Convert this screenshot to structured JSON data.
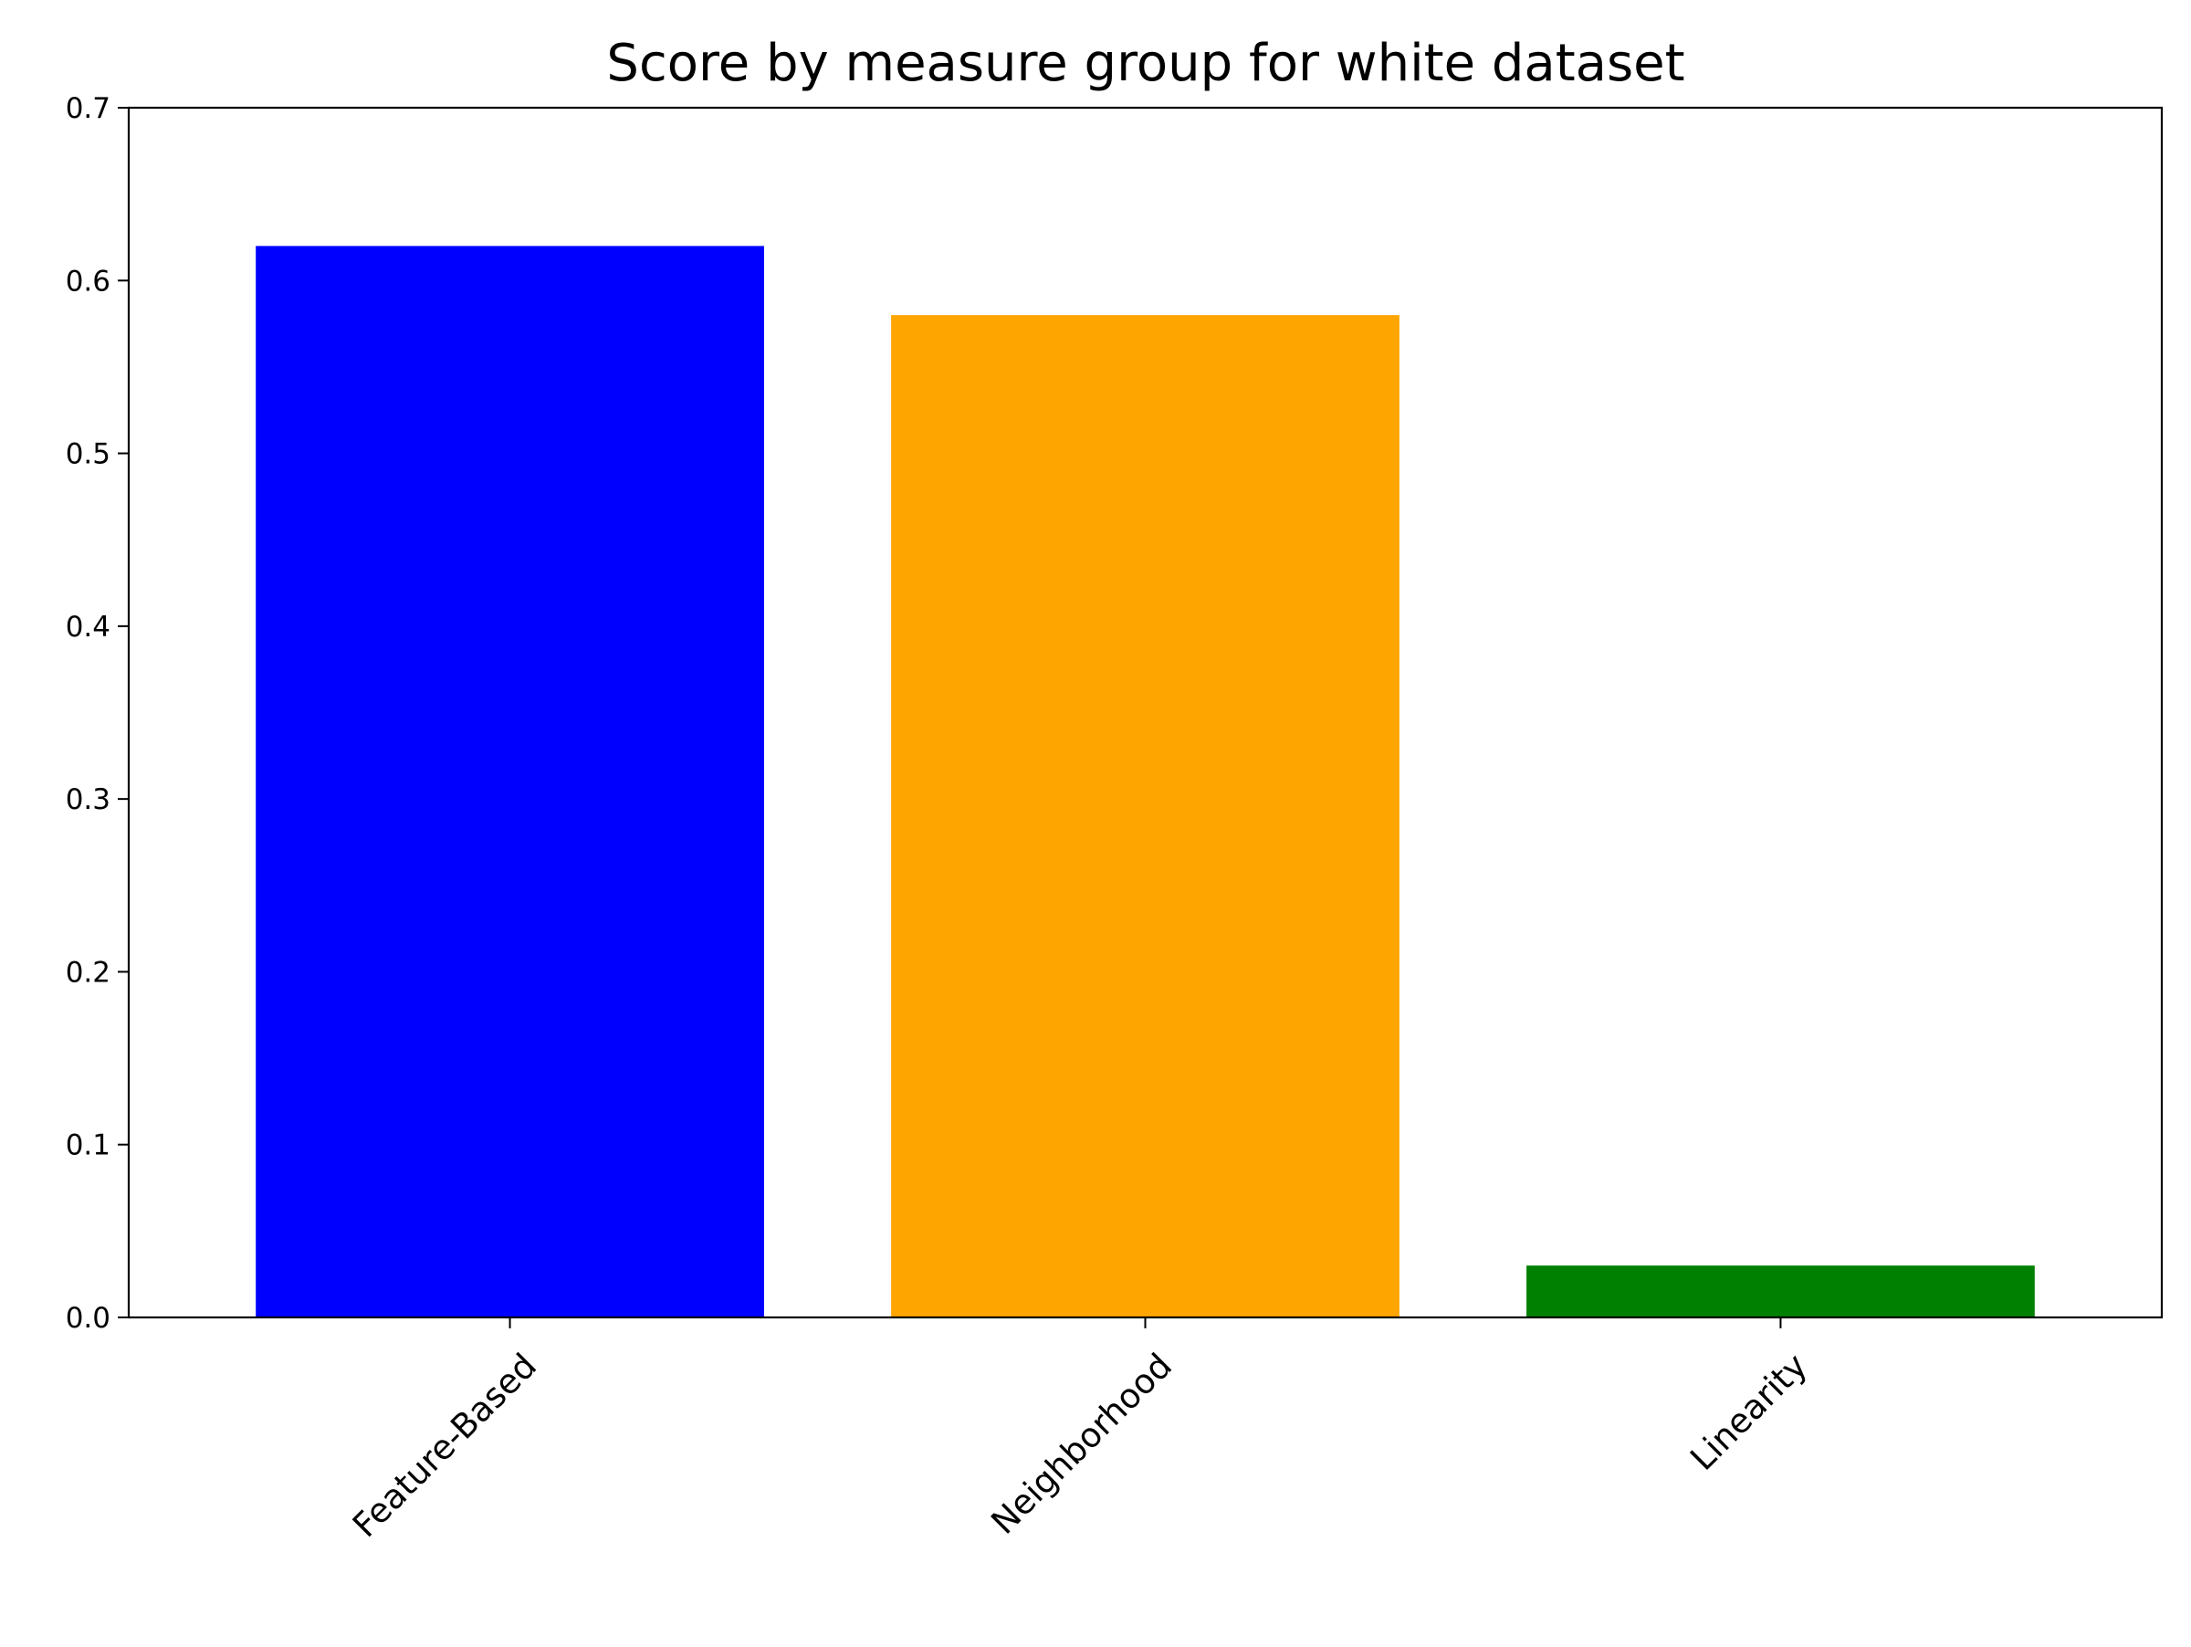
{
  "chart_data": {
    "type": "bar",
    "title": "Score by measure group for white dataset",
    "xlabel": "",
    "ylabel": "",
    "categories": [
      "Feature-Based",
      "Neighborhood",
      "Linearity"
    ],
    "values": [
      0.62,
      0.58,
      0.03
    ],
    "colors": [
      "#0000ff",
      "#ffa500",
      "#008000"
    ],
    "ylim": [
      0,
      0.7
    ],
    "yticks": [
      0.0,
      0.1,
      0.2,
      0.3,
      0.4,
      0.5,
      0.6,
      0.7
    ],
    "ytick_labels": [
      "0.0",
      "0.1",
      "0.2",
      "0.3",
      "0.4",
      "0.5",
      "0.6",
      "0.7"
    ],
    "xtick_rotation_deg": 45,
    "grid": false,
    "legend": "none"
  }
}
